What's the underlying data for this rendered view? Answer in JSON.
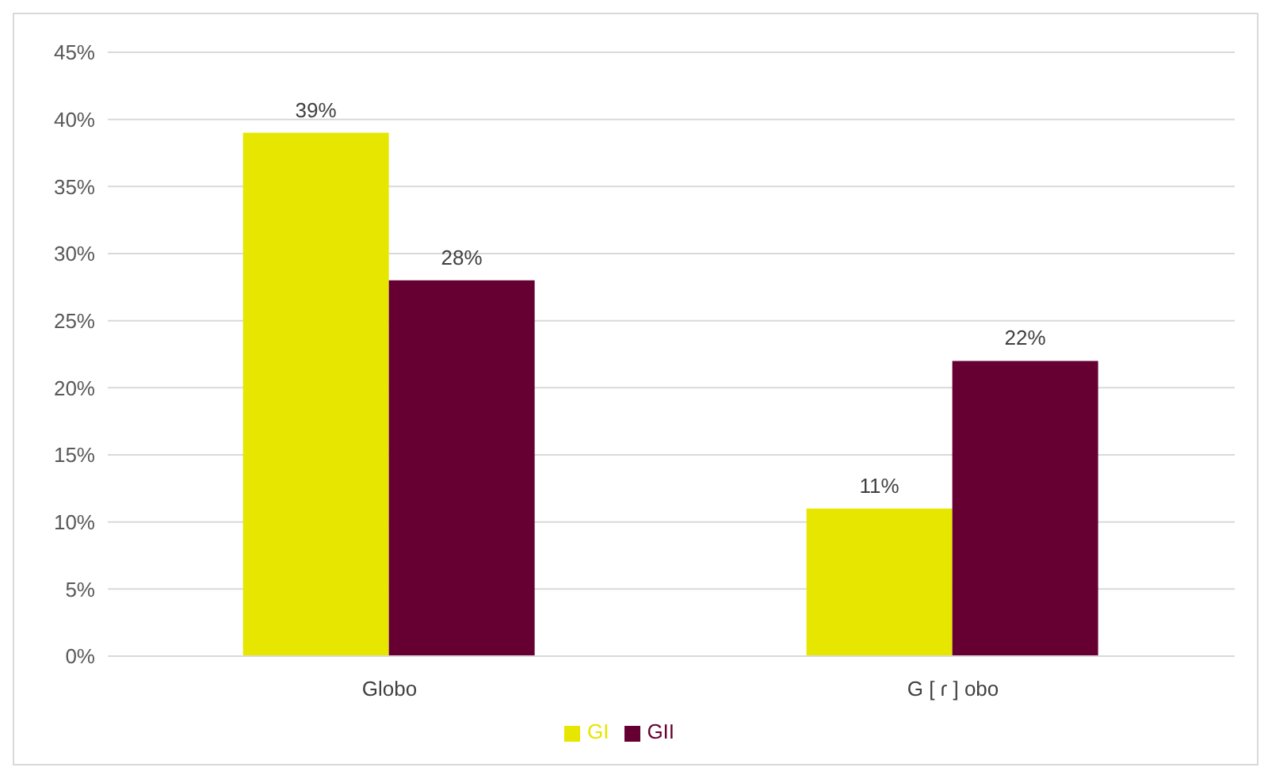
{
  "chart_data": {
    "type": "bar",
    "categories": [
      "Globo",
      "G [ ɾ ] obo"
    ],
    "series": [
      {
        "name": "GI",
        "color": "#e6e600",
        "values": [
          39,
          11
        ],
        "value_labels": [
          "39%",
          "11%"
        ]
      },
      {
        "name": "GII",
        "color": "#660033",
        "values": [
          28,
          22
        ],
        "value_labels": [
          "28%",
          "22%"
        ]
      }
    ],
    "ylim": [
      0,
      45
    ],
    "yticks": [
      {
        "value": 0,
        "label": "0%"
      },
      {
        "value": 5,
        "label": "5%"
      },
      {
        "value": 10,
        "label": "10%"
      },
      {
        "value": 15,
        "label": "15%"
      },
      {
        "value": 20,
        "label": "20%"
      },
      {
        "value": 25,
        "label": "25%"
      },
      {
        "value": 30,
        "label": "30%"
      },
      {
        "value": 35,
        "label": "35%"
      },
      {
        "value": 40,
        "label": "40%"
      },
      {
        "value": 45,
        "label": "45%"
      }
    ],
    "grid": "y",
    "legend": "bottom"
  }
}
